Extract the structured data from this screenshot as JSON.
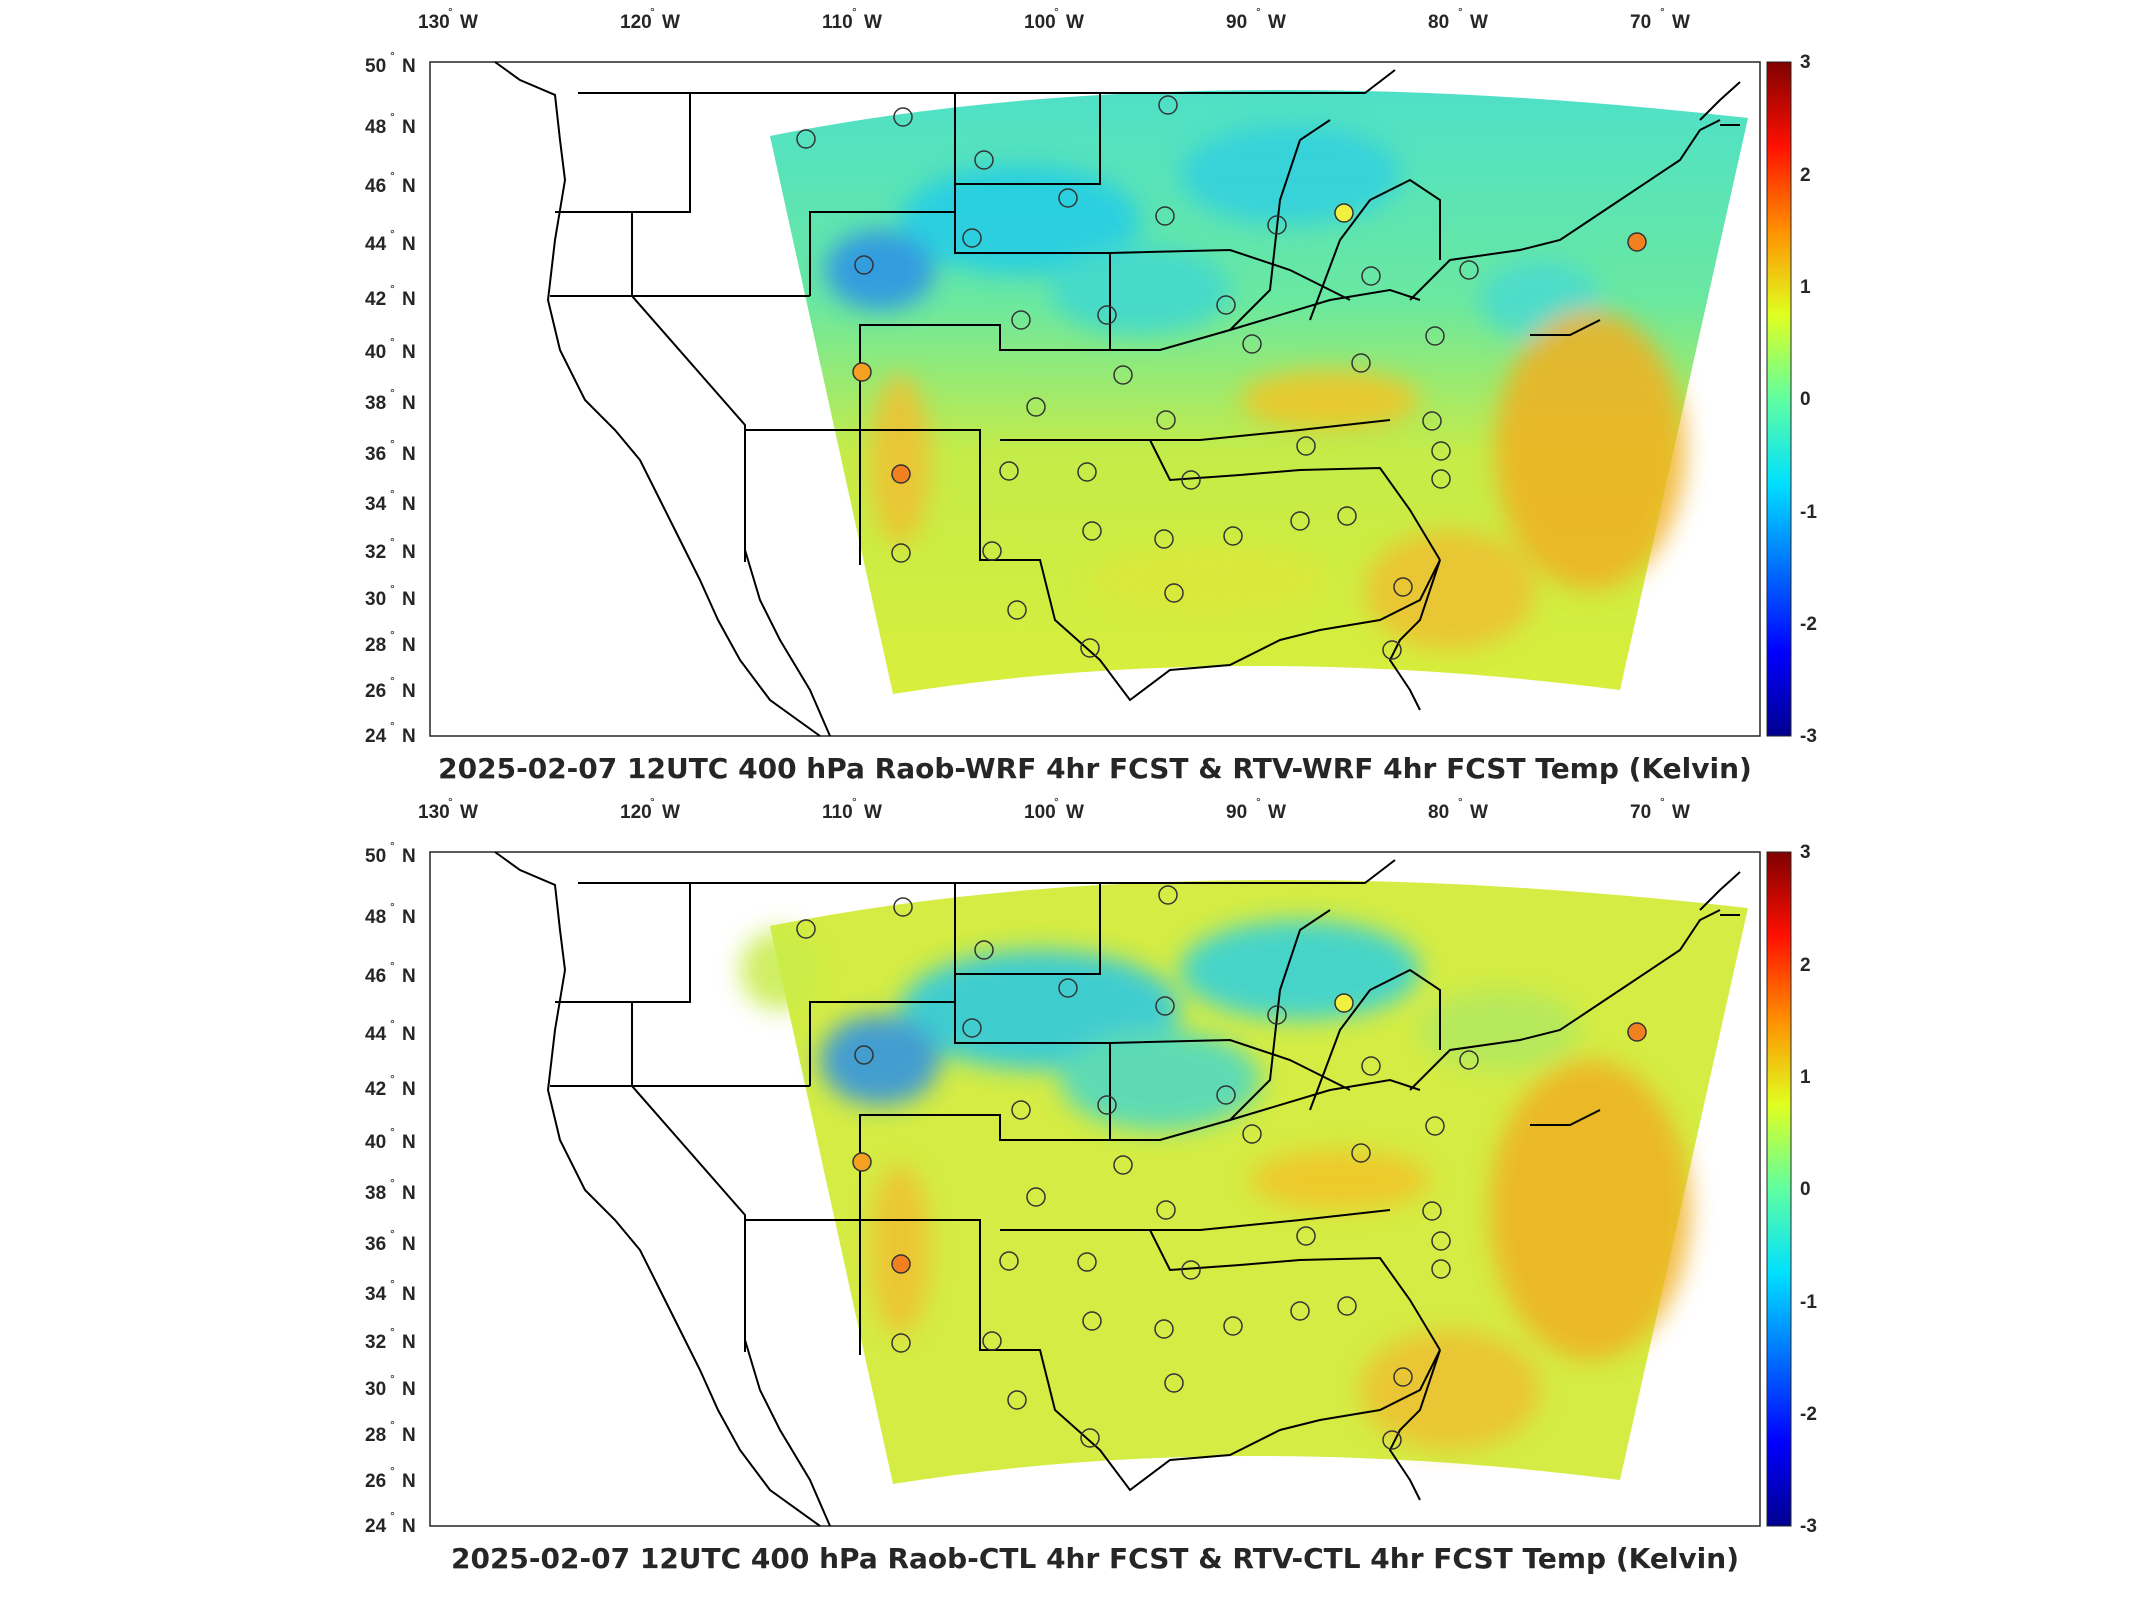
{
  "colors": {
    "scale": [
      "#00008f",
      "#0000ff",
      "#0080ff",
      "#00ffff",
      "#80ff80",
      "#ffff00",
      "#ff8000",
      "#ff0000",
      "#800000"
    ],
    "domain_blue": "#22d0ee",
    "domain_green": "#9be25c",
    "domain_yellow": "#dff03a",
    "domain_orange": "#f3b01d",
    "land_lines": "#000000"
  },
  "maps": [
    {
      "title": "2025-02-07 12UTC 400 hPa Raob-WRF 4hr FCST & RTV-WRF 4hr FCST Temp (Kelvin)",
      "lon_labels": [
        "130",
        "120",
        "110",
        "100",
        "90",
        "80",
        "70"
      ],
      "lon_suffix": "W",
      "lat_labels": [
        "50",
        "48",
        "46",
        "44",
        "42",
        "40",
        "38",
        "36",
        "34",
        "32",
        "30",
        "28",
        "26",
        "24"
      ],
      "lat_suffix": "N",
      "colorbar_ticks": [
        "3",
        "2",
        "1",
        "0",
        "-1",
        "-2",
        "-3"
      ]
    },
    {
      "title": "2025-02-07 12UTC 400 hPa Raob-CTL 4hr FCST & RTV-CTL 4hr FCST Temp (Kelvin)",
      "lon_labels": [
        "130",
        "120",
        "110",
        "100",
        "90",
        "80",
        "70"
      ],
      "lon_suffix": "W",
      "lat_labels": [
        "50",
        "48",
        "46",
        "44",
        "42",
        "40",
        "38",
        "36",
        "34",
        "32",
        "30",
        "28",
        "26",
        "24"
      ],
      "lat_suffix": "N",
      "colorbar_ticks": [
        "3",
        "2",
        "1",
        "0",
        "-1",
        "-2",
        "-3"
      ]
    }
  ]
}
